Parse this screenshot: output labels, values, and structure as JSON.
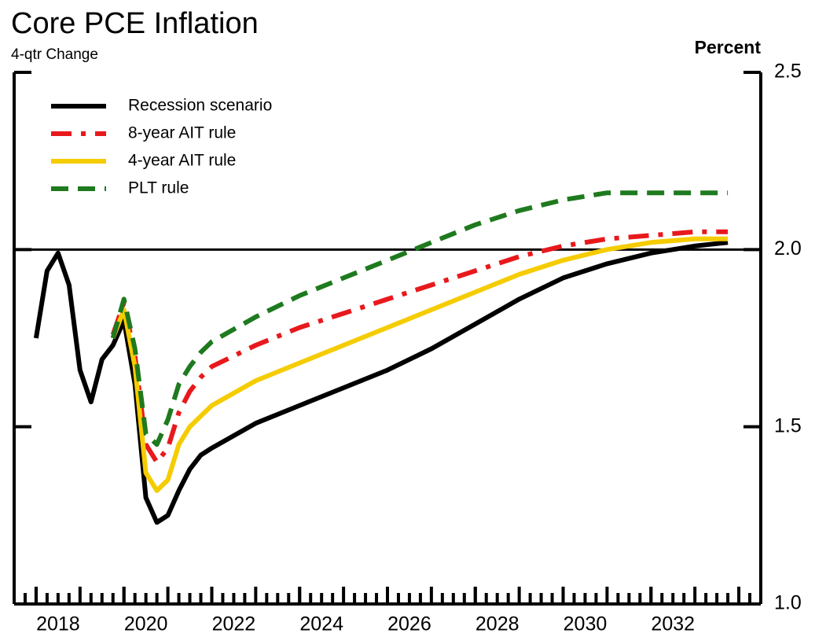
{
  "chart_data": {
    "type": "line",
    "title": "Core PCE Inflation",
    "subtitle": "4-qtr Change",
    "y_axis_label": "Percent",
    "x": [
      2018,
      2018.25,
      2018.5,
      2018.75,
      2019,
      2019.25,
      2019.5,
      2019.75,
      2020,
      2020.25,
      2020.5,
      2020.75,
      2021,
      2021.25,
      2021.5,
      2021.75,
      2022,
      2023,
      2024,
      2025,
      2026,
      2027,
      2028,
      2029,
      2030,
      2031,
      2032,
      2033,
      2033.75
    ],
    "series": [
      {
        "name": "Recession scenario",
        "color": "#000000",
        "style": "solid",
        "values": [
          1.75,
          1.94,
          1.99,
          1.9,
          1.66,
          1.57,
          1.69,
          1.73,
          1.8,
          1.62,
          1.3,
          1.23,
          1.25,
          1.32,
          1.38,
          1.42,
          1.44,
          1.51,
          1.56,
          1.61,
          1.66,
          1.72,
          1.79,
          1.86,
          1.92,
          1.96,
          1.99,
          2.01,
          2.02
        ]
      },
      {
        "name": "8-year AIT rule",
        "color": "#e8191c",
        "style": "dashdot",
        "values": [
          null,
          null,
          null,
          null,
          null,
          null,
          null,
          1.76,
          1.85,
          1.7,
          1.45,
          1.4,
          1.44,
          1.54,
          1.6,
          1.64,
          1.67,
          1.73,
          1.78,
          1.82,
          1.86,
          1.9,
          1.94,
          1.98,
          2.01,
          2.03,
          2.04,
          2.05,
          2.05
        ]
      },
      {
        "name": "4-year AIT rule",
        "color": "#f5cc00",
        "style": "solid",
        "values": [
          null,
          null,
          null,
          null,
          null,
          null,
          null,
          1.75,
          1.83,
          1.67,
          1.37,
          1.32,
          1.35,
          1.45,
          1.5,
          1.53,
          1.56,
          1.63,
          1.68,
          1.73,
          1.78,
          1.83,
          1.88,
          1.93,
          1.97,
          2.0,
          2.02,
          2.03,
          2.03
        ]
      },
      {
        "name": "PLT rule",
        "color": "#1e7a1e",
        "style": "dashed",
        "values": [
          null,
          null,
          null,
          null,
          null,
          null,
          null,
          1.75,
          1.86,
          1.72,
          1.48,
          1.45,
          1.52,
          1.62,
          1.67,
          1.71,
          1.74,
          1.81,
          1.87,
          1.92,
          1.97,
          2.02,
          2.07,
          2.11,
          2.14,
          2.16,
          2.16,
          2.16,
          2.16
        ]
      }
    ],
    "xlim": [
      2017.5,
      2034.5
    ],
    "xticks": [
      2018,
      2020,
      2022,
      2024,
      2026,
      2028,
      2030,
      2032
    ],
    "ylim": [
      1.0,
      2.5
    ],
    "yticks": [
      {
        "value": 1.0,
        "label": "1.0"
      },
      1.5,
      {
        "value": 2.0,
        "label": "2.0"
      },
      2.5
    ],
    "reference_line": 2,
    "legend": "top-left"
  }
}
